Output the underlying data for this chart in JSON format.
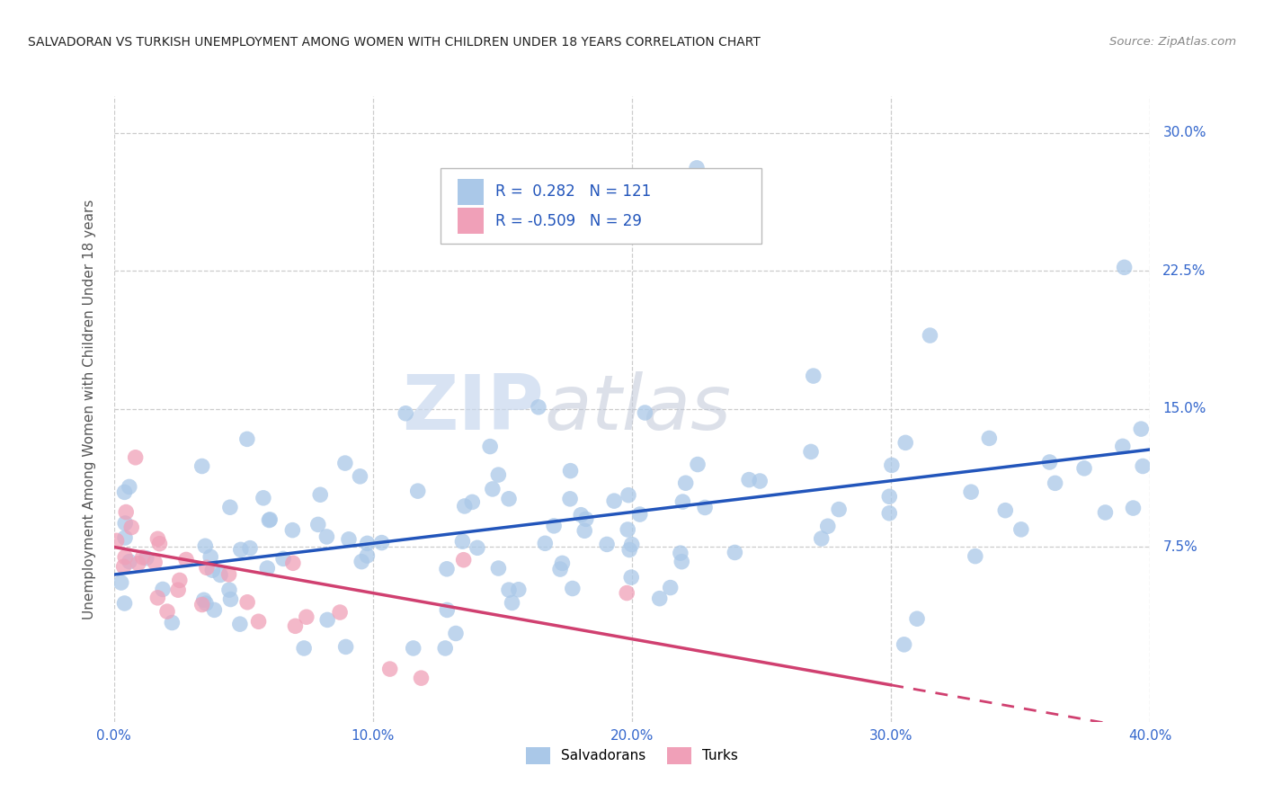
{
  "title": "SALVADORAN VS TURKISH UNEMPLOYMENT AMONG WOMEN WITH CHILDREN UNDER 18 YEARS CORRELATION CHART",
  "source": "Source: ZipAtlas.com",
  "ylabel": "Unemployment Among Women with Children Under 18 years",
  "xlim": [
    0.0,
    0.4
  ],
  "ylim": [
    -0.02,
    0.32
  ],
  "xtick_vals": [
    0.0,
    0.1,
    0.2,
    0.3,
    0.4
  ],
  "ytick_vals": [
    0.075,
    0.15,
    0.225,
    0.3
  ],
  "ytick_labels": [
    "7.5%",
    "15.0%",
    "22.5%",
    "30.0%"
  ],
  "salvadoran_color": "#aac8e8",
  "turkish_color": "#f0a0b8",
  "salvadoran_line_color": "#2255bb",
  "turkish_line_color": "#d04070",
  "R_salvadoran": "0.282",
  "N_salvadoran": "121",
  "R_turkish": "-0.509",
  "N_turkish": "29",
  "legend_label_salvadoran": "Salvadorans",
  "legend_label_turkish": "Turks",
  "watermark_zip": "ZIP",
  "watermark_atlas": "atlas",
  "background_color": "#ffffff",
  "grid_color": "#cccccc",
  "title_color": "#222222",
  "axis_label_color": "#555555",
  "tick_label_color": "#3366cc",
  "salvadoran_trend_x": [
    0.0,
    0.4
  ],
  "salvadoran_trend_y": [
    0.06,
    0.128
  ],
  "turkish_trend_x": [
    0.0,
    0.4
  ],
  "turkish_trend_y": [
    0.075,
    -0.025
  ]
}
